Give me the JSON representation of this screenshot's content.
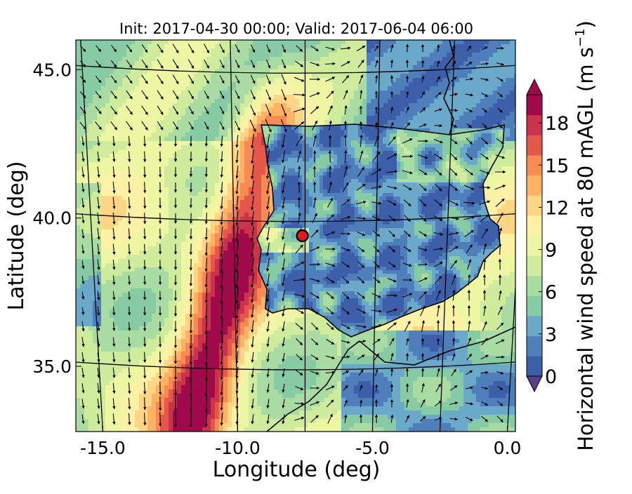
{
  "chart_data": {
    "type": "heatmap",
    "title": "Init: 2017-04-30 00:00; Valid: 2017-06-04 06:00",
    "xlabel": "Longitude (deg)",
    "ylabel": "Latitude (deg)",
    "xlim": [
      -16.0,
      0.3
    ],
    "ylim": [
      32.8,
      46.0
    ],
    "x_ticks": [
      -15.0,
      -10.0,
      -5.0,
      0.0
    ],
    "x_tick_labels": [
      "-15.0",
      "-10.0",
      "-5.0",
      "0.0"
    ],
    "y_ticks": [
      35.0,
      40.0,
      45.0
    ],
    "y_tick_labels": [
      "35.0",
      "40.0",
      "45.0"
    ],
    "colorbar": {
      "label": "Horizontal wind speed at 80 mAGL (m s",
      "label_exponent": "−1",
      "label_close": ")",
      "range": [
        0,
        20
      ],
      "ticks": [
        0,
        3,
        6,
        9,
        12,
        15,
        18
      ],
      "tick_labels": [
        "0",
        "3",
        "6",
        "9",
        "12",
        "15",
        "18"
      ],
      "extend": "both",
      "colormap": "Spectral_r",
      "colors": [
        "#3d5ea8",
        "#4f7fbb",
        "#6aa9c9",
        "#86cba4",
        "#a9dca2",
        "#cfeb9c",
        "#edf7a3",
        "#fdf1a6",
        "#fed585",
        "#fdb266",
        "#f78b53",
        "#e6574b",
        "#c9334b",
        "#a0094a"
      ]
    },
    "marker": {
      "lon": -7.6,
      "lat": 39.4,
      "color": "#e41a1c"
    },
    "coastline_color": "#000000",
    "vector_color": "#000000"
  }
}
